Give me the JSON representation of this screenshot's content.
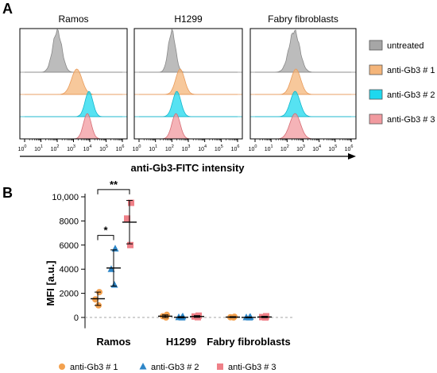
{
  "panels": {
    "a": "A",
    "b": "B"
  },
  "colors": {
    "untreated": "#a6a6a6",
    "anti1": "#f4b57a",
    "anti2": "#1ed8ee",
    "anti3": "#f19a9f",
    "marker1": "#f3a14f",
    "marker2": "#2d86c8",
    "marker3": "#ef8088"
  },
  "chart_data": [
    {
      "type": "area",
      "panel": "A",
      "xlabel": "anti-Gb3-FITC intensity",
      "x_scale": "log",
      "x_ticks": [
        "10^0",
        "10^1",
        "10^2",
        "10^3",
        "10^4",
        "10^5",
        "10^6"
      ],
      "x_ticks_display": [
        {
          "base": "10",
          "exp": "0"
        },
        {
          "base": "10",
          "exp": "1"
        },
        {
          "base": "10",
          "exp": "2"
        },
        {
          "base": "10",
          "exp": "3"
        },
        {
          "base": "10",
          "exp": "4"
        },
        {
          "base": "10",
          "exp": "5"
        },
        {
          "base": "10",
          "exp": "6"
        }
      ],
      "histogram_rows": [
        "untreated",
        "anti-Gb3 # 1",
        "anti-Gb3 # 2",
        "anti-Gb3 # 3"
      ],
      "legend": [
        {
          "name": "untreated",
          "color_key": "untreated"
        },
        {
          "name": "anti-Gb3 # 1",
          "color_key": "anti1"
        },
        {
          "name": "anti-Gb3 # 2",
          "color_key": "anti2"
        },
        {
          "name": "anti-Gb3 # 3",
          "color_key": "anti3"
        }
      ],
      "cell_lines": [
        {
          "name": "Ramos",
          "peaks_log10": [
            2.0,
            3.2,
            3.95,
            3.85
          ],
          "widths_log10": [
            0.28,
            0.32,
            0.24,
            0.24
          ]
        },
        {
          "name": "H1299",
          "peaks_log10": [
            2.0,
            2.5,
            2.3,
            2.25
          ],
          "widths_log10": [
            0.22,
            0.27,
            0.25,
            0.25
          ]
        },
        {
          "name": "Fabry fibroblasts",
          "peaks_log10": [
            2.45,
            2.55,
            2.5,
            2.5
          ],
          "widths_log10": [
            0.33,
            0.3,
            0.3,
            0.33
          ]
        }
      ]
    },
    {
      "type": "scatter",
      "panel": "B",
      "ylabel": "MFI [a.u.]",
      "ylim": [
        -200,
        10000
      ],
      "y_ticks": [
        "0",
        "2000",
        "4000",
        "6000",
        "8000",
        "10,000"
      ],
      "y_tick_values": [
        0,
        2000,
        4000,
        6000,
        8000,
        10000
      ],
      "categories": [
        "Ramos",
        "H1299",
        "Fabry fibroblasts"
      ],
      "series": [
        {
          "name": "anti-Gb3 # 1",
          "marker": "circle",
          "color_key": "marker1",
          "points": [
            [
              2100,
              1500,
              1000
            ],
            [
              220,
              100,
              0
            ],
            [
              60,
              20,
              0
            ]
          ],
          "mean": [
            1550,
            100,
            30
          ],
          "sd": [
            550,
            110,
            40
          ]
        },
        {
          "name": "anti-Gb3 # 2",
          "marker": "triangle",
          "color_key": "marker2",
          "points": [
            [
              5700,
              4000,
              2700
            ],
            [
              70,
              10,
              -20
            ],
            [
              40,
              0,
              -20
            ]
          ],
          "mean": [
            4100,
            15,
            5
          ],
          "sd": [
            1500,
            50,
            35
          ]
        },
        {
          "name": "anti-Gb3 # 3",
          "marker": "square",
          "color_key": "marker3",
          "points": [
            [
              9500,
              8200,
              6000
            ],
            [
              150,
              80,
              20
            ],
            [
              100,
              30,
              0
            ]
          ],
          "mean": [
            7900,
            80,
            40
          ],
          "sd": [
            1800,
            70,
            55
          ]
        }
      ],
      "annotations": [
        {
          "text": "*",
          "from_series": 0,
          "to_series": 1,
          "category": 0,
          "y": 6800
        },
        {
          "text": "**",
          "from_series": 0,
          "to_series": 2,
          "category": 0,
          "y": 10600
        }
      ]
    }
  ]
}
